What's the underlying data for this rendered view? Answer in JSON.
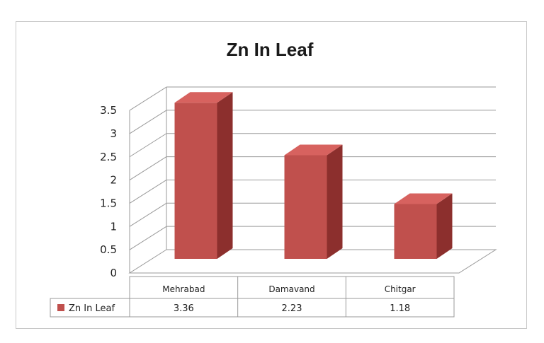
{
  "chart_data": {
    "type": "bar",
    "title": "Zn In Leaf",
    "categories": [
      "Mehrabad",
      "Damavand",
      "Chitgar"
    ],
    "series": [
      {
        "name": "Zn In Leaf",
        "values": [
          3.36,
          2.23,
          1.18
        ],
        "color": "#c0504d"
      }
    ],
    "value_labels": [
      "3.36",
      "2.23",
      "1.18"
    ],
    "yticks": [
      "0",
      "0.5",
      "1",
      "1.5",
      "2",
      "2.5",
      "3",
      "3.5"
    ],
    "ylim": [
      0,
      3.5
    ],
    "grid": true,
    "three_d": true,
    "legend": "data-table-left"
  }
}
